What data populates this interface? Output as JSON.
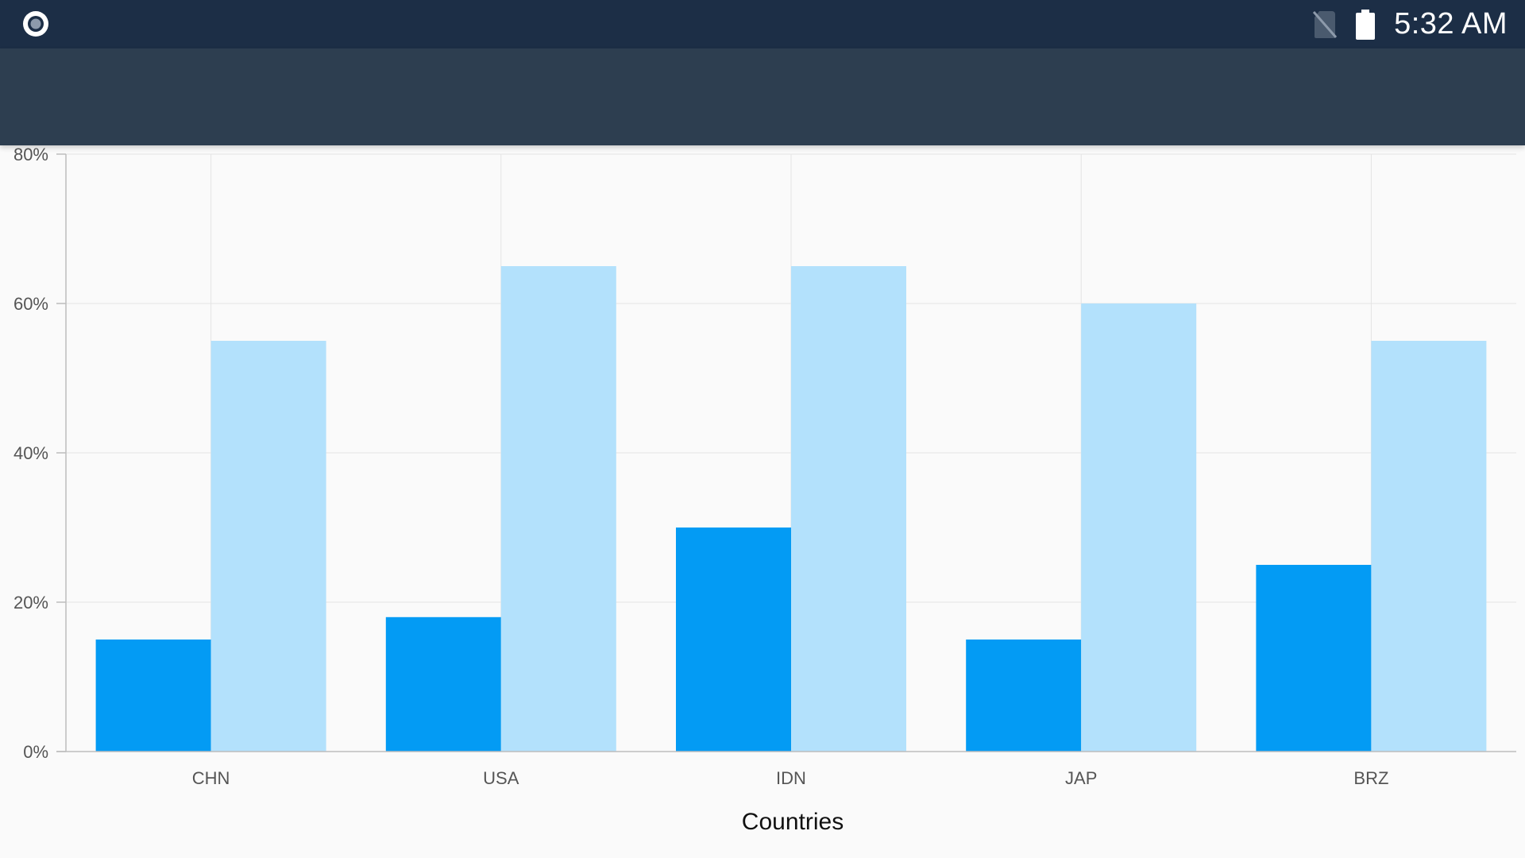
{
  "status_bar": {
    "time": "5:32 AM",
    "icons": [
      "record-icon",
      "no-sim-icon",
      "battery-icon"
    ],
    "background": "#1c2e46"
  },
  "app_bar": {
    "background": "#2d3e50"
  },
  "chart_data": {
    "type": "bar",
    "categories": [
      "CHN",
      "USA",
      "IDN",
      "JAP",
      "BRZ"
    ],
    "series": [
      {
        "color": "#039bf4",
        "values": [
          15,
          18,
          30,
          15,
          25
        ]
      },
      {
        "color": "#b3e1fc",
        "values": [
          55,
          65,
          65,
          60,
          55
        ]
      }
    ],
    "xlabel": "Countries",
    "ylabel": "",
    "ylim": [
      0,
      80
    ],
    "y_ticks": [
      "0%",
      "20%",
      "40%",
      "60%",
      "80%"
    ],
    "grid": true
  }
}
